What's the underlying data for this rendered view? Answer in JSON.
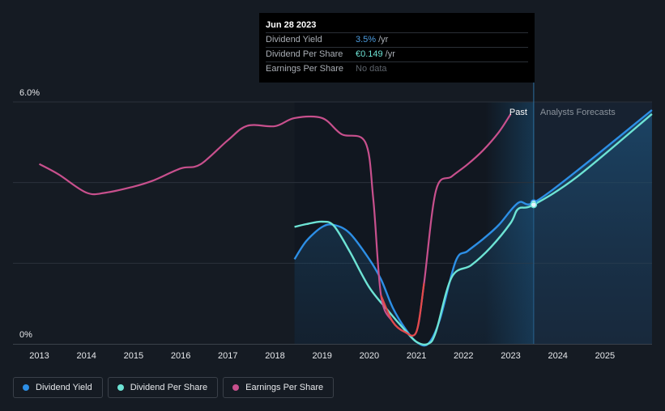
{
  "chart_data": {
    "type": "line",
    "x_ticks": [
      "2013",
      "2014",
      "2015",
      "2016",
      "2017",
      "2018",
      "2019",
      "2020",
      "2021",
      "2022",
      "2023",
      "2024",
      "2025"
    ],
    "y_ticks": [
      "0%",
      "6.0%"
    ],
    "ylim": [
      0,
      6.0
    ],
    "regions": {
      "past_label": "Past",
      "forecast_label": "Analysts Forecasts",
      "split_date": "2023-06-28"
    },
    "series": [
      {
        "name": "Dividend Yield",
        "color": "#2d8fe6",
        "points": [
          [
            "2018-06-01",
            2.1
          ],
          [
            "2018-09-01",
            2.55
          ],
          [
            "2019-01-01",
            2.9
          ],
          [
            "2019-04-01",
            2.95
          ],
          [
            "2019-08-01",
            2.75
          ],
          [
            "2020-01-01",
            2.1
          ],
          [
            "2020-04-01",
            1.6
          ],
          [
            "2020-07-01",
            0.9
          ],
          [
            "2020-10-01",
            0.4
          ],
          [
            "2021-01-01",
            0.05
          ],
          [
            "2021-04-01",
            0.0
          ],
          [
            "2021-07-01",
            0.6
          ],
          [
            "2021-11-01",
            2.05
          ],
          [
            "2022-02-01",
            2.3
          ],
          [
            "2022-06-01",
            2.6
          ],
          [
            "2022-10-01",
            2.95
          ],
          [
            "2023-03-01",
            3.5
          ],
          [
            "2023-06-28",
            3.5
          ],
          [
            "2024-06-01",
            4.3
          ],
          [
            "2025-12-31",
            5.8
          ]
        ]
      },
      {
        "name": "Dividend Per Share",
        "color": "#6de3d4",
        "points": [
          [
            "2018-06-01",
            2.9
          ],
          [
            "2018-09-01",
            2.97
          ],
          [
            "2019-01-01",
            3.03
          ],
          [
            "2019-04-01",
            2.93
          ],
          [
            "2019-08-01",
            2.3
          ],
          [
            "2020-01-01",
            1.4
          ],
          [
            "2020-06-01",
            0.8
          ],
          [
            "2020-10-01",
            0.35
          ],
          [
            "2021-01-01",
            0.05
          ],
          [
            "2021-04-01",
            0.0
          ],
          [
            "2021-06-01",
            0.3
          ],
          [
            "2021-10-01",
            1.65
          ],
          [
            "2022-03-01",
            1.95
          ],
          [
            "2022-08-01",
            2.4
          ],
          [
            "2023-01-01",
            3.0
          ],
          [
            "2023-03-01",
            3.35
          ],
          [
            "2023-06-28",
            3.45
          ],
          [
            "2024-06-01",
            4.15
          ],
          [
            "2025-12-31",
            5.7
          ]
        ]
      },
      {
        "name": "Earnings Per Share",
        "color": "#c8508d",
        "negative_color": "#e24a4a",
        "points": [
          [
            "2013-01-01",
            4.46
          ],
          [
            "2013-06-01",
            4.2
          ],
          [
            "2014-01-01",
            3.75
          ],
          [
            "2014-06-01",
            3.75
          ],
          [
            "2015-01-01",
            3.9
          ],
          [
            "2015-06-01",
            4.05
          ],
          [
            "2016-01-01",
            4.35
          ],
          [
            "2016-06-01",
            4.45
          ],
          [
            "2017-01-01",
            5.05
          ],
          [
            "2017-06-01",
            5.41
          ],
          [
            "2018-01-01",
            5.4
          ],
          [
            "2018-06-01",
            5.6
          ],
          [
            "2019-01-01",
            5.6
          ],
          [
            "2019-06-01",
            5.2
          ],
          [
            "2019-12-01",
            5.0
          ],
          [
            "2020-02-01",
            3.6
          ],
          [
            "2020-04-01",
            1.2
          ],
          [
            "2020-07-01",
            0.55
          ],
          [
            "2020-10-01",
            0.3
          ],
          [
            "2021-01-01",
            0.3
          ],
          [
            "2021-03-01",
            1.5
          ],
          [
            "2021-06-01",
            3.8
          ],
          [
            "2021-10-01",
            4.15
          ],
          [
            "2022-02-01",
            4.45
          ],
          [
            "2022-06-01",
            4.8
          ],
          [
            "2022-10-01",
            5.25
          ],
          [
            "2023-01-01",
            5.7
          ]
        ]
      }
    ]
  },
  "tooltip": {
    "date": "Jun 28 2023",
    "rows": [
      {
        "label": "Dividend Yield",
        "value": "3.5%",
        "unit": "/yr"
      },
      {
        "label": "Dividend Per Share",
        "value": "€0.149",
        "unit": "/yr"
      },
      {
        "label": "Earnings Per Share",
        "value": "No data",
        "unit": ""
      }
    ]
  },
  "legend": [
    {
      "label": "Dividend Yield",
      "color": "#2d8fe6"
    },
    {
      "label": "Dividend Per Share",
      "color": "#6de3d4"
    },
    {
      "label": "Earnings Per Share",
      "color": "#c8508d"
    }
  ]
}
